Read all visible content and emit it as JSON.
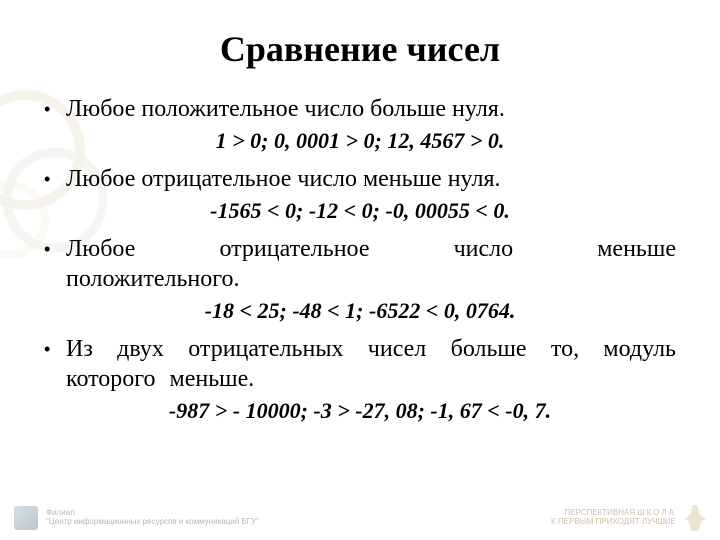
{
  "title": "Сравнение чисел",
  "bullets": [
    {
      "text": "Любое положительное число больше нуля.",
      "example": "1 > 0;   0, 0001 > 0;   12, 4567 > 0.",
      "justify": false
    },
    {
      "text": "Любое отрицательное число  меньше нуля.",
      "example": "-1565 < 0;   -12 < 0;   -0, 00055 < 0.",
      "justify": false
    },
    {
      "text": "Любое отрицательное число меньше положительного.",
      "example": "-18 < 25;   -48 < 1;    -6522 < 0, 0764.",
      "justify": true
    },
    {
      "text": "Из двух отрицательных чисел больше то, модуль которого меньше.",
      "example": "-987 > - 10000;   -3 > -27, 08;   -1, 67 < -0, 7.",
      "justify": true
    }
  ],
  "footer": {
    "left_line1": "Филиал",
    "left_line2": "\"Центр информационных ресурсов и коммуникаций БГУ\"",
    "right_line1": "ПЕРСПЕКТИВНАЯ",
    "right_line2": "К ПЕРВЫМ ПРИХОДЯТ ЛУЧШИЕ",
    "right_word": "ШКОЛА"
  },
  "colors": {
    "deco_stroke": "#d9cba0",
    "deco_stroke2": "#cfd8c3"
  }
}
